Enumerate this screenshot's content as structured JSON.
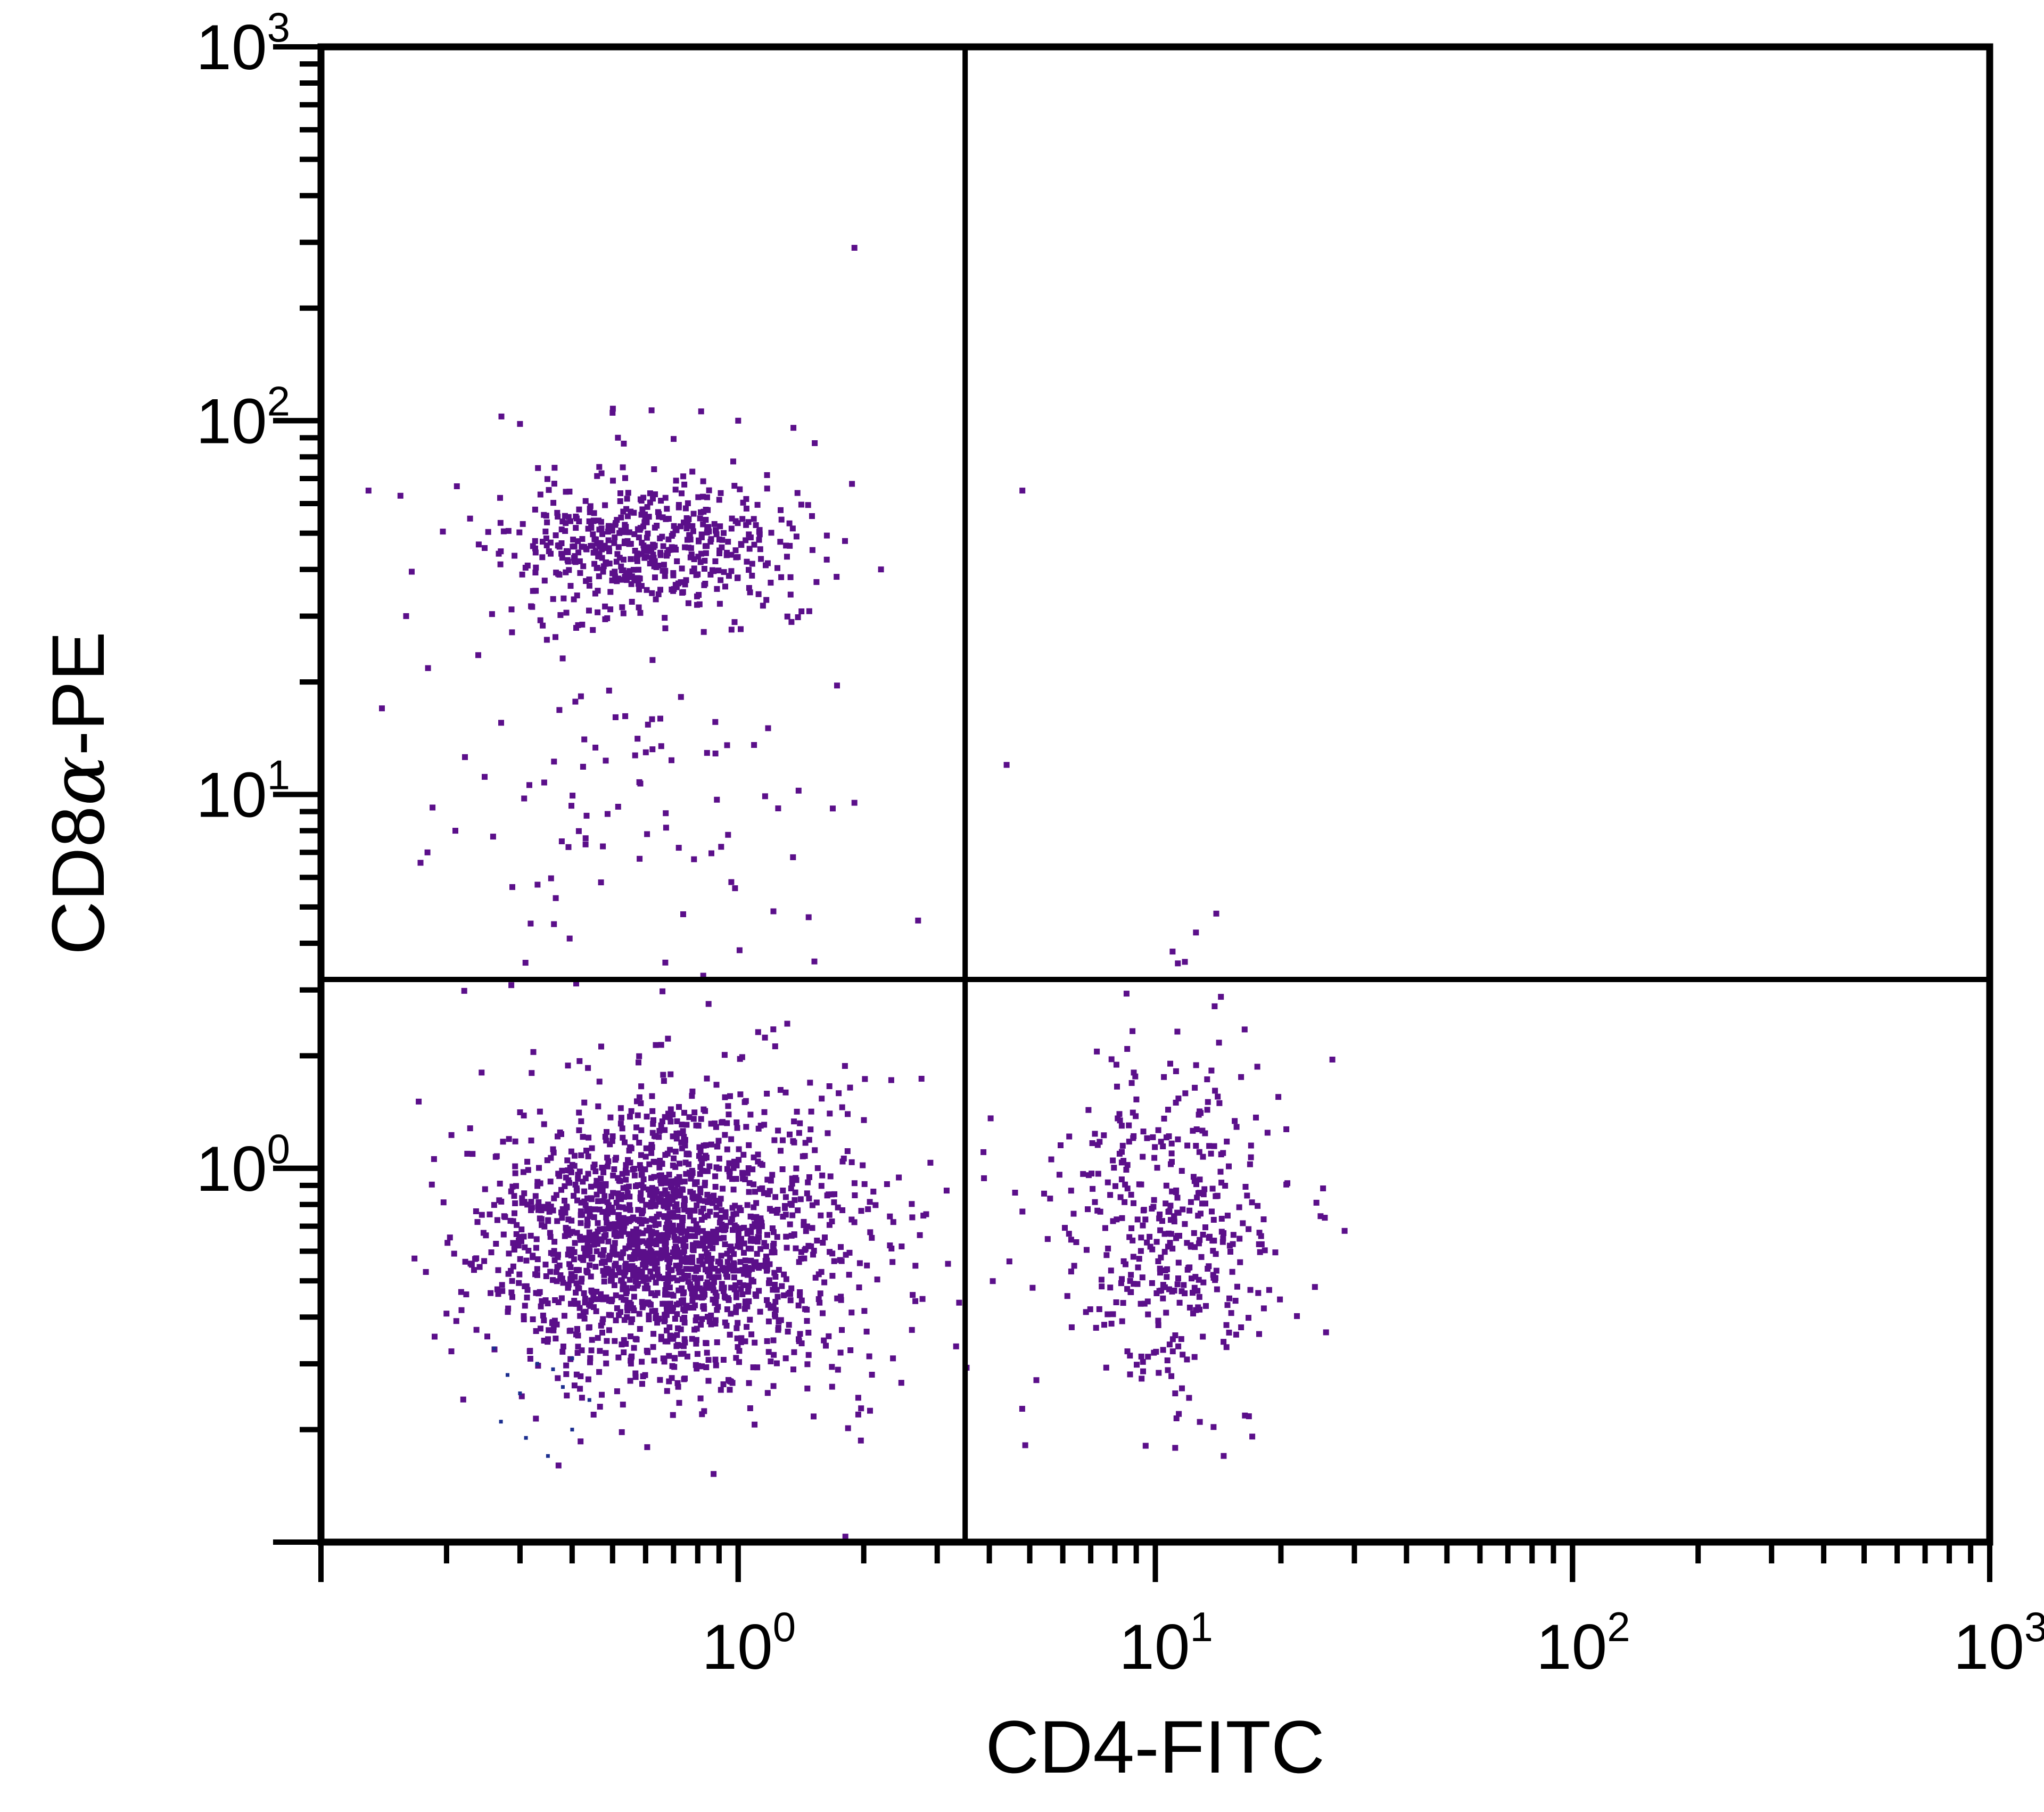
{
  "chart_data": {
    "type": "scatter",
    "title": "",
    "xlabel": "CD4-FITC",
    "ylabel_prefix": "CD8",
    "ylabel_greek": "α",
    "ylabel_suffix": "-PE",
    "ylabel": "CD8α-PE",
    "x_scale": "log",
    "y_scale": "log",
    "xlim": [
      0.1,
      1000
    ],
    "ylim": [
      0.1,
      1000
    ],
    "x_ticks": [
      {
        "base": "10",
        "exp": "0",
        "value": 1
      },
      {
        "base": "10",
        "exp": "1",
        "value": 10
      },
      {
        "base": "10",
        "exp": "2",
        "value": 100
      },
      {
        "base": "10",
        "exp": "3",
        "value": 1000
      }
    ],
    "y_ticks": [
      {
        "base": "10",
        "exp": "0",
        "value": 1
      },
      {
        "base": "10",
        "exp": "1",
        "value": 10
      },
      {
        "base": "10",
        "exp": "2",
        "value": 100
      },
      {
        "base": "10",
        "exp": "3",
        "value": 1000
      }
    ],
    "quadrant_gates": {
      "x": 3.5,
      "y": 3.2
    },
    "grid": false,
    "point_color": "#5b0f8a",
    "sparse_point_color": "#1c2f8f",
    "gate_color": "#000000",
    "populations": [
      {
        "name": "CD8+ CD4- cluster",
        "n": 520,
        "mean_log_x": -0.22,
        "sd_log_x": 0.17,
        "mean_log_y": 1.67,
        "sd_log_y": 0.09,
        "seed": 11
      },
      {
        "name": "CD8+ CD4- tail",
        "n": 130,
        "mean_log_x": -0.28,
        "sd_log_x": 0.22,
        "mean_log_y": 1.2,
        "sd_log_y": 0.35,
        "seed": 12
      },
      {
        "name": "CD4- CD8- cluster",
        "n": 1700,
        "mean_log_x": -0.2,
        "sd_log_x": 0.2,
        "mean_log_y": -0.2,
        "sd_log_y": 0.18,
        "seed": 21
      },
      {
        "name": "CD4- CD8- scatter",
        "n": 260,
        "mean_log_x": 0.05,
        "sd_log_x": 0.25,
        "mean_log_y": -0.15,
        "sd_log_y": 0.25,
        "seed": 22
      },
      {
        "name": "CD4+ CD8- cluster",
        "n": 430,
        "mean_log_x": 1.05,
        "sd_log_x": 0.14,
        "mean_log_y": -0.15,
        "sd_log_y": 0.25,
        "seed": 31
      }
    ],
    "sparse_points": [
      {
        "x": 0.28,
        "y": 0.28
      },
      {
        "x": 0.33,
        "y": 0.3
      },
      {
        "x": 0.36,
        "y": 0.29
      },
      {
        "x": 0.4,
        "y": 0.31
      },
      {
        "x": 0.3,
        "y": 0.25
      },
      {
        "x": 0.27,
        "y": 0.21
      },
      {
        "x": 0.31,
        "y": 0.19
      },
      {
        "x": 0.35,
        "y": 0.17
      },
      {
        "x": 0.4,
        "y": 0.2
      },
      {
        "x": 0.44,
        "y": 0.24
      },
      {
        "x": 0.26,
        "y": 0.33
      },
      {
        "x": 0.38,
        "y": 0.26
      }
    ],
    "outliers": [
      {
        "x": 1.9,
        "y": 290
      },
      {
        "x": 0.5,
        "y": 105
      },
      {
        "x": 0.3,
        "y": 98
      },
      {
        "x": 1.0,
        "y": 100
      },
      {
        "x": 4.8,
        "y": 65
      },
      {
        "x": 4.4,
        "y": 12
      },
      {
        "x": 2.2,
        "y": 40
      },
      {
        "x": 1.9,
        "y": 9.5
      },
      {
        "x": 14,
        "y": 4.8
      },
      {
        "x": 11,
        "y": 3.8
      },
      {
        "x": 2.7,
        "y": 4.6
      },
      {
        "x": 0.18,
        "y": 7
      },
      {
        "x": 0.21,
        "y": 8
      },
      {
        "x": 0.13,
        "y": 65
      },
      {
        "x": 0.16,
        "y": 30
      },
      {
        "x": 0.14,
        "y": 17
      }
    ]
  }
}
